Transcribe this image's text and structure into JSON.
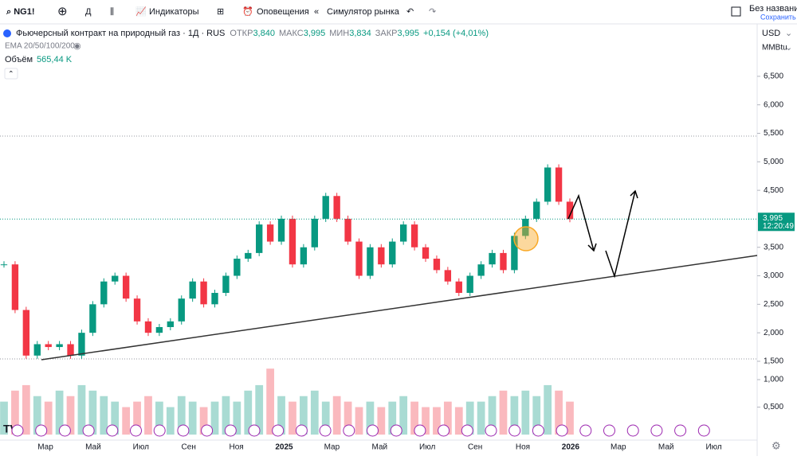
{
  "toolbar": {
    "symbol": "NG1!",
    "interval": "Д",
    "indicators": "Индикаторы",
    "alerts": "Оповещения",
    "replay": "Симулятор рынка",
    "layout_name": "Без названия",
    "save": "Сохранить"
  },
  "legend": {
    "title": "Фьючерсный контракт на природный газ · 1Д · RUS",
    "open_label": "ОТКР",
    "open": "3,840",
    "high_label": "МАКС",
    "high": "3,995",
    "low_label": "МИН",
    "low": "3,834",
    "close_label": "ЗАКР",
    "close": "3,995",
    "change": "+0,154 (+4,01%)",
    "ema": "EMA 20/50/100/200",
    "volume_label": "Объём",
    "volume_value": "565,44 K"
  },
  "price_scale": {
    "currency": "USD",
    "unit": "MMBtu",
    "last_price": "3,995",
    "countdown": "12:20:49"
  },
  "time_axis": [
    "Мар",
    "Май",
    "Июл",
    "Сен",
    "Ноя",
    "2025",
    "Мар",
    "Май",
    "Июл",
    "Сен",
    "Ноя",
    "2026",
    "Мар",
    "Май",
    "Июл"
  ],
  "chart_data": {
    "type": "candlestick",
    "categories": [
      null,
      null,
      null,
      null,
      null,
      null,
      null,
      null,
      null,
      null,
      null,
      null,
      null,
      null,
      null,
      null,
      null,
      null,
      null,
      null,
      null,
      null,
      null,
      null,
      null,
      null,
      null,
      null,
      null,
      null,
      null,
      null,
      null,
      null,
      null,
      null,
      null,
      null,
      null,
      null,
      null,
      null,
      null,
      null,
      null,
      null,
      null,
      null,
      null,
      null,
      null,
      null
    ],
    "values": [
      3.2,
      2.4,
      1.6,
      1.8,
      1.75,
      1.8,
      1.6,
      2.0,
      2.5,
      2.9,
      3.0,
      2.6,
      2.2,
      2.0,
      2.1,
      2.2,
      2.6,
      2.9,
      2.5,
      2.7,
      3.0,
      3.3,
      3.4,
      3.9,
      3.6,
      4.0,
      3.2,
      3.5,
      4.0,
      4.4,
      4.0,
      3.6,
      3.0,
      3.5,
      3.2,
      3.6,
      3.9,
      3.5,
      3.3,
      3.1,
      2.9,
      2.7,
      3.0,
      3.2,
      3.4,
      3.1,
      3.7,
      4.0,
      4.3,
      4.9,
      4.3,
      3.995
    ],
    "volumes": [
      0.6,
      0.8,
      0.9,
      0.7,
      0.6,
      0.8,
      0.7,
      0.9,
      0.8,
      0.7,
      0.6,
      0.5,
      0.6,
      0.7,
      0.6,
      0.5,
      0.7,
      0.6,
      0.5,
      0.6,
      0.7,
      0.6,
      0.8,
      0.9,
      1.2,
      0.7,
      0.6,
      0.7,
      0.8,
      0.6,
      0.7,
      0.6,
      0.5,
      0.6,
      0.5,
      0.6,
      0.7,
      0.6,
      0.5,
      0.5,
      0.6,
      0.5,
      0.6,
      0.6,
      0.7,
      0.8,
      0.7,
      0.8,
      0.7,
      0.9,
      0.8,
      0.6
    ],
    "ylim": [
      0.117,
      7.42
    ],
    "yticks": [
      {
        "value": 1.5,
        "label": "1,500"
      },
      {
        "value": 2.0,
        "label": "2,000"
      },
      {
        "value": 2.5,
        "label": "2,500"
      },
      {
        "value": 3.0,
        "label": "3,000"
      },
      {
        "value": 3.5,
        "label": "3,500"
      },
      {
        "value": 4.5,
        "label": "4,500"
      },
      {
        "value": 5.0,
        "label": "5,000"
      },
      {
        "value": 5.5,
        "label": "5,500"
      },
      {
        "value": 6.0,
        "label": "6,000"
      },
      {
        "value": 6.5,
        "label": "6,500"
      }
    ],
    "y2lim": [
      -0.1,
      7.47
    ],
    "y2ticks": [
      {
        "value": 0.5,
        "label": "0,500"
      },
      {
        "value": 1.0,
        "label": "1,000"
      }
    ],
    "up_color": "#089981",
    "down_color": "#f23645"
  }
}
